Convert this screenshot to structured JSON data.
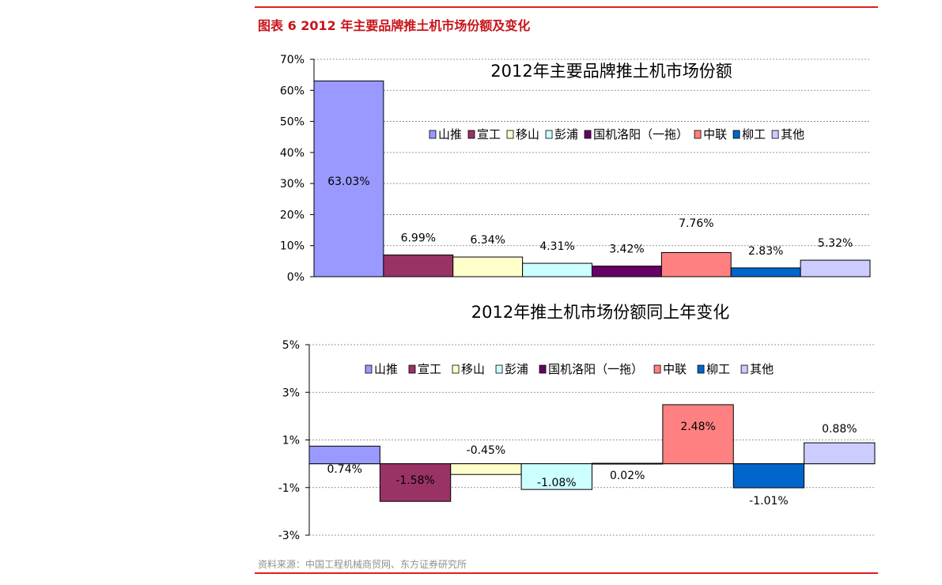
{
  "figure": {
    "title": "图表 6   2012 年主要品牌推土机市场份额及变化",
    "source": "资料来源：中国工程机械商贸网、东方证券研究所"
  },
  "colors": {
    "rule": "#e0201e",
    "title": "#c8141a",
    "series": [
      "#9999ff",
      "#993366",
      "#ffffcc",
      "#ccffff",
      "#660066",
      "#ff8080",
      "#0066cc",
      "#ccccff"
    ]
  },
  "chart_data": [
    {
      "type": "bar",
      "title": "2012年主要品牌推土机市场份额",
      "xlabel": "",
      "ylabel": "",
      "categories": [
        "山推",
        "宣工",
        "移山",
        "彭浦",
        "国机洛阳（一拖）",
        "中联",
        "柳工",
        "其他"
      ],
      "values": [
        63.03,
        6.99,
        6.34,
        4.31,
        3.42,
        7.76,
        2.83,
        5.32
      ],
      "data_labels": [
        "63.03%",
        "6.99%",
        "6.34%",
        "4.31%",
        "3.42%",
        "7.76%",
        "2.83%",
        "5.32%"
      ],
      "value_unit": "%",
      "ylim": [
        0,
        70
      ],
      "yticks": [
        0,
        10,
        20,
        30,
        40,
        50,
        60,
        70
      ],
      "ytick_labels": [
        "0%",
        "10%",
        "20%",
        "30%",
        "40%",
        "50%",
        "60%",
        "70%"
      ],
      "grid": true,
      "legend": "top-right"
    },
    {
      "type": "bar",
      "title": "2012年推土机市场份额同上年变化",
      "xlabel": "",
      "ylabel": "",
      "categories": [
        "山推",
        "宣工",
        "移山",
        "彭浦",
        "国机洛阳（一拖）",
        "中联",
        "柳工",
        "其他"
      ],
      "values": [
        0.74,
        -1.58,
        -0.45,
        -1.08,
        0.02,
        2.48,
        -1.01,
        0.88
      ],
      "data_labels": [
        "0.74%",
        "-1.58%",
        "-0.45%",
        "-1.08%",
        "0.02%",
        "2.48%",
        "-1.01%",
        "0.88%"
      ],
      "value_unit": "%",
      "ylim": [
        -3,
        5
      ],
      "yticks": [
        -3,
        -1,
        1,
        3,
        5
      ],
      "ytick_labels": [
        "-3%",
        "-1%",
        "1%",
        "3%",
        "5%"
      ],
      "grid": true,
      "legend": "top"
    }
  ]
}
